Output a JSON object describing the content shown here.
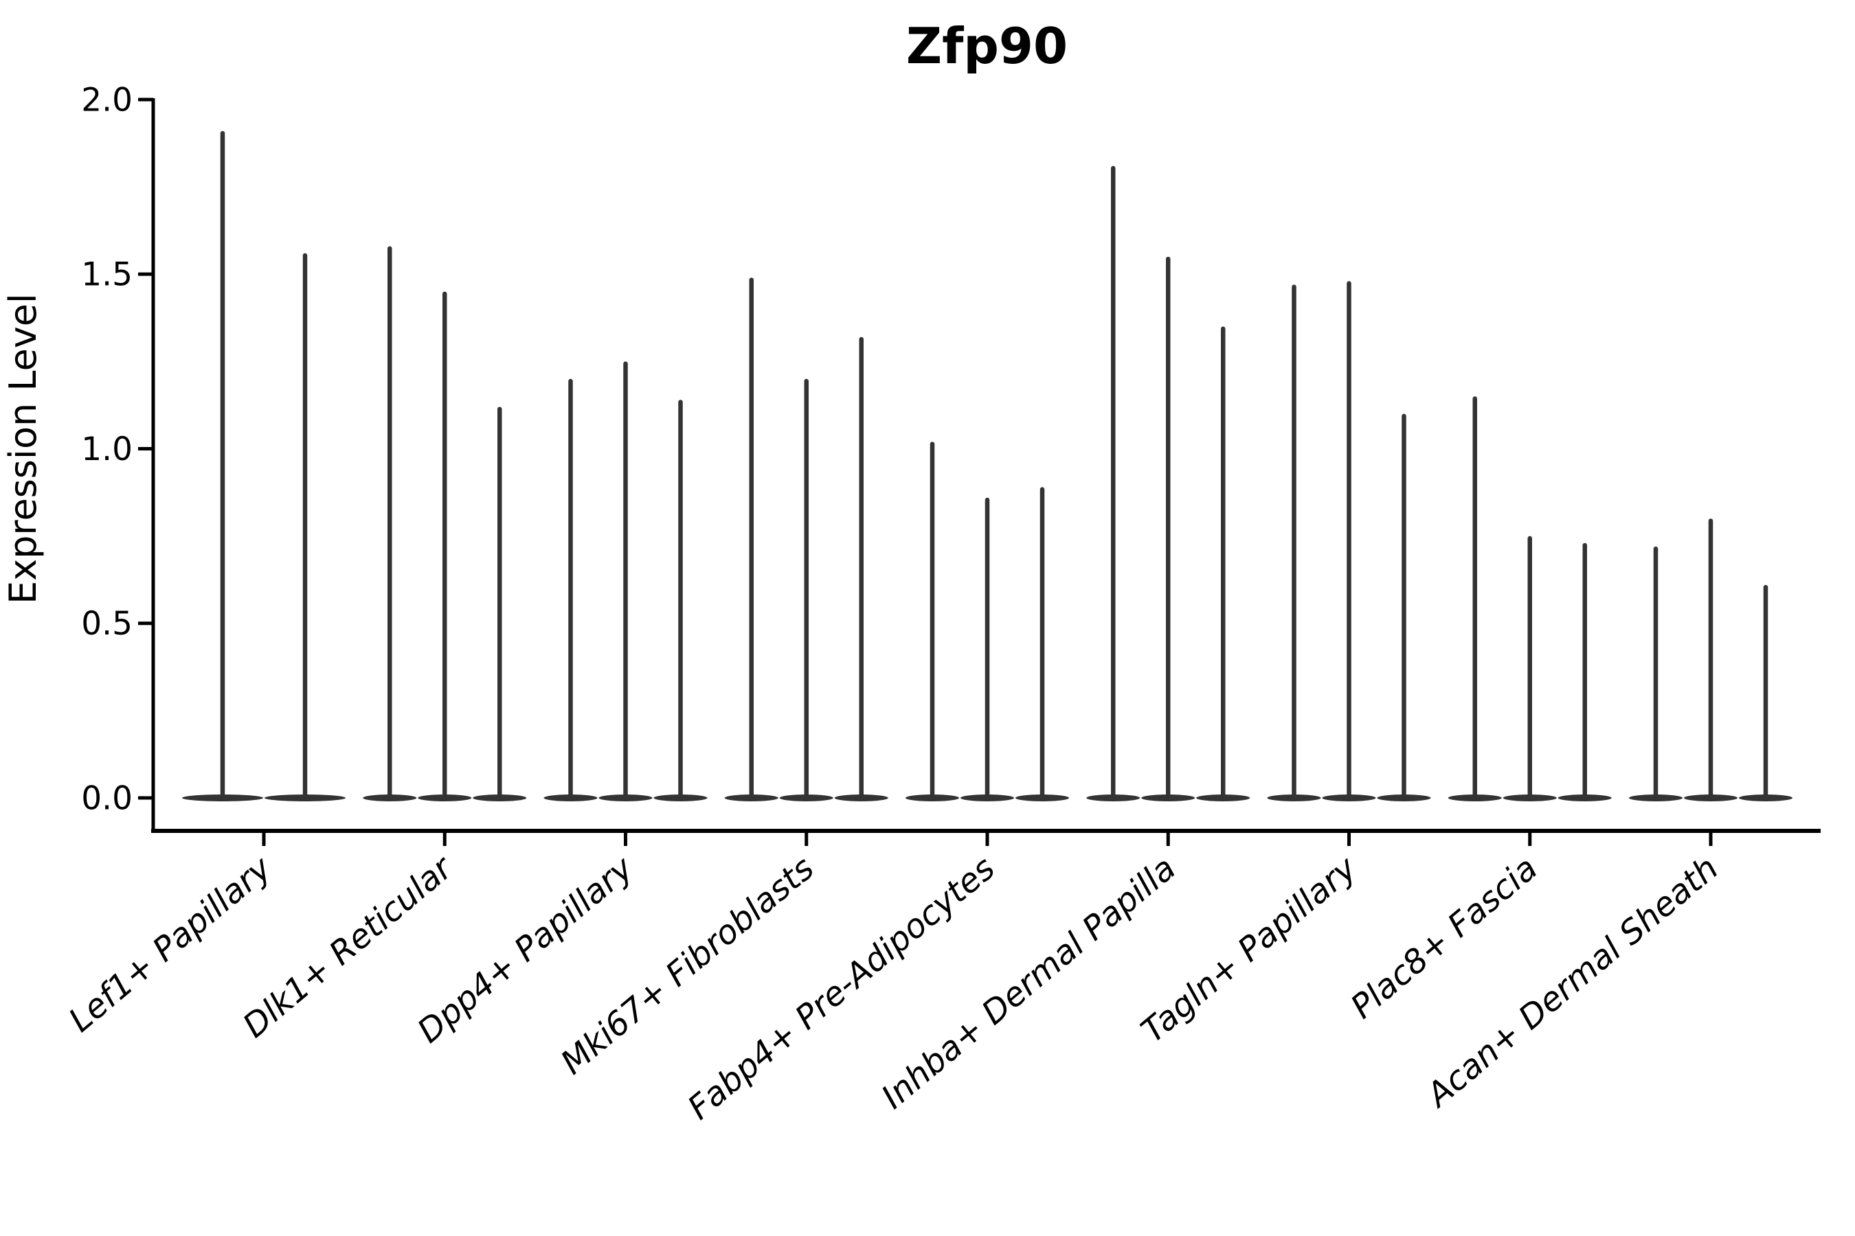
{
  "chart_data": {
    "type": "violin",
    "title": "Zfp90",
    "ylabel": "Expression Level",
    "xlabel": "",
    "ylim": [
      -0.095,
      2.0
    ],
    "yticks": [
      0.0,
      0.5,
      1.0,
      1.5,
      2.0
    ],
    "ytick_labels": [
      "0.0",
      "0.5",
      "1.0",
      "1.5",
      "2.0"
    ],
    "grid": "off",
    "legend": "none",
    "categories": [
      "Lef1+ Papillary",
      "Dlk1+ Reticular",
      "Dpp4+ Papillary",
      "Mki67+ Fibroblasts",
      "Fabp4+ Pre-Adipocytes",
      "Inhba+ Dermal Papilla",
      "Tagln+ Papillary",
      "Plac8+ Fascia",
      "Acan+ Dermal Sheath"
    ],
    "groups": [
      {
        "category": "Lef1+ Papillary",
        "violin_max_expression": [
          1.91,
          1.56
        ]
      },
      {
        "category": "Dlk1+ Reticular",
        "violin_max_expression": [
          1.58,
          1.45,
          1.12
        ]
      },
      {
        "category": "Dpp4+ Papillary",
        "violin_max_expression": [
          1.2,
          1.25,
          1.14
        ]
      },
      {
        "category": "Mki67+ Fibroblasts",
        "violin_max_expression": [
          1.49,
          1.2,
          1.32
        ]
      },
      {
        "category": "Fabp4+ Pre-Adipocytes",
        "violin_max_expression": [
          1.02,
          0.86,
          0.89
        ]
      },
      {
        "category": "Inhba+ Dermal Papilla",
        "violin_max_expression": [
          1.81,
          1.55,
          1.35
        ]
      },
      {
        "category": "Tagln+ Papillary",
        "violin_max_expression": [
          1.47,
          1.48,
          1.1
        ]
      },
      {
        "category": "Plac8+ Fascia",
        "violin_max_expression": [
          1.15,
          0.75,
          0.73
        ]
      },
      {
        "category": "Acan+ Dermal Sheath",
        "violin_max_expression": [
          0.72,
          0.8,
          0.61
        ]
      }
    ],
    "violin_shape_note": "each violin is a thin spike from 0 up to its max with a wide flat density lens at 0",
    "colors": {
      "violin": "#333333",
      "axis": "#000000",
      "background": "#ffffff"
    }
  }
}
